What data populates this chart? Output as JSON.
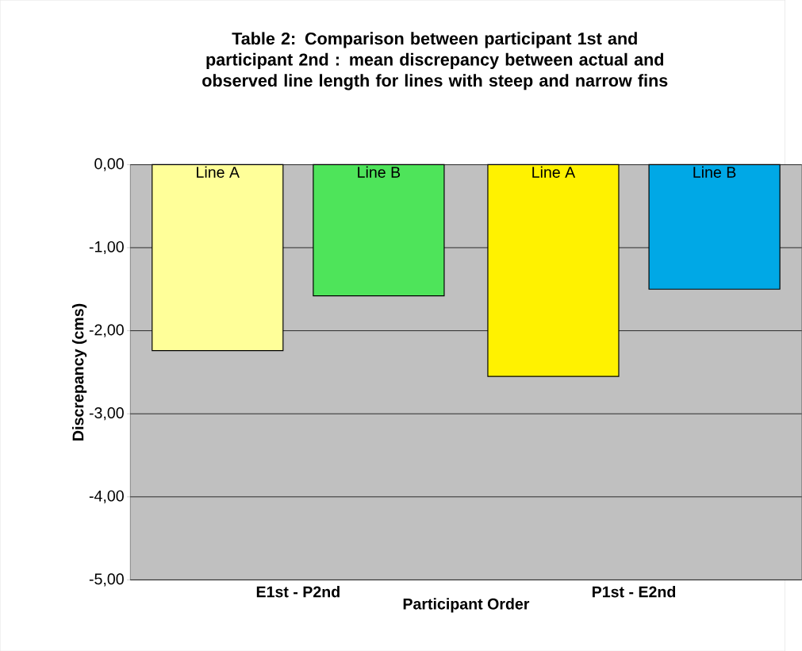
{
  "chart_data": {
    "type": "bar",
    "title": "Table 2: Comparison between participant 1st and participant 2nd : mean discrepancy between actual and observed line length for lines with steep and narrow fins",
    "xlabel": "Participant  Order",
    "ylabel": "Discrepancy  (cms)",
    "categories": [
      "E1st - P2nd",
      "P1st - E2nd"
    ],
    "series": [
      {
        "name": "Line A",
        "colors": [
          "#ffff99",
          "#fff200"
        ],
        "values": [
          -2.24,
          -2.55
        ]
      },
      {
        "name": "Line B",
        "colors": [
          "#4ee45a",
          "#00a8e6"
        ],
        "values": [
          -1.58,
          -1.5
        ]
      }
    ],
    "ylim": [
      -5,
      0
    ],
    "yticks": [
      {
        "value": 0,
        "label": "0,00"
      },
      {
        "value": -1,
        "label": "-1,00"
      },
      {
        "value": -2,
        "label": "-2,00"
      },
      {
        "value": -3,
        "label": "-3,00"
      },
      {
        "value": -4,
        "label": "-4,00"
      },
      {
        "value": -5,
        "label": "-5,00"
      }
    ],
    "grid": "y"
  }
}
